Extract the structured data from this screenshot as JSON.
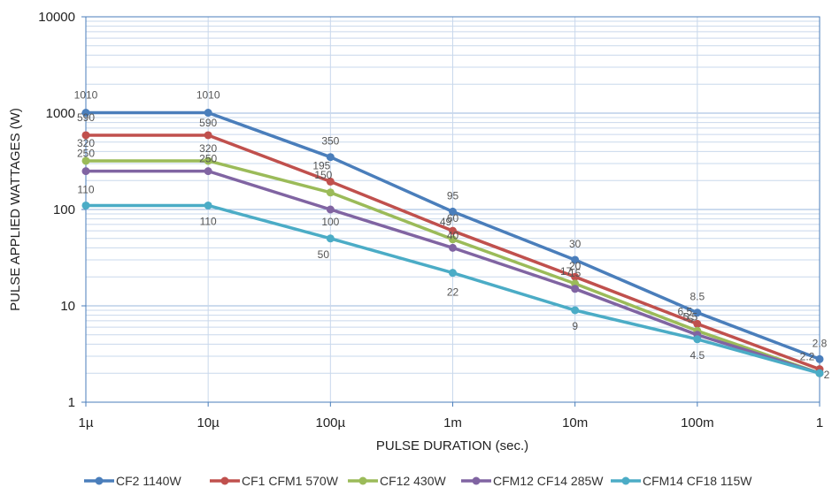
{
  "chart_data": {
    "type": "line",
    "xlabel": "PULSE DURATION (sec.)",
    "ylabel": "PULSE APPLIED WATTAGES (W)",
    "x_scale": "log",
    "y_scale": "log",
    "x_ticks": [
      "1µ",
      "10µ",
      "100µ",
      "1m",
      "10m",
      "100m",
      "1"
    ],
    "x_tick_values": [
      1e-06,
      1e-05,
      0.0001,
      0.001,
      0.01,
      0.1,
      1
    ],
    "y_ticks": [
      "1",
      "10",
      "100",
      "1000",
      "10000"
    ],
    "y_tick_values": [
      1,
      10,
      100,
      1000,
      10000
    ],
    "xlim": [
      1e-06,
      1
    ],
    "ylim": [
      1,
      10000
    ],
    "grid": "on",
    "legend_position": "bottom",
    "series": [
      {
        "name": "CF2 1140W",
        "color": "#4a7ebb",
        "x": [
          1e-06,
          1e-05,
          0.0001,
          0.001,
          0.01,
          0.1,
          1
        ],
        "values": [
          1010,
          1010,
          350,
          95,
          30,
          8.5,
          2.8
        ],
        "labels": [
          "1010",
          "1010",
          "350",
          "95",
          "30",
          "8.5",
          "2.8"
        ]
      },
      {
        "name": "CF1 CFM1 570W",
        "color": "#c0504d",
        "x": [
          1e-06,
          1e-05,
          0.0001,
          0.001,
          0.01,
          0.1,
          1
        ],
        "values": [
          590,
          590,
          195,
          60,
          20,
          6.5,
          2.2
        ],
        "labels": [
          "590",
          "590",
          "195",
          "60",
          "20",
          "6.5",
          "2.2"
        ]
      },
      {
        "name": "CF12 430W",
        "color": "#9bbb59",
        "x": [
          1e-06,
          1e-05,
          0.0001,
          0.001,
          0.01,
          0.1,
          1
        ],
        "values": [
          320,
          320,
          150,
          49,
          17,
          5.5,
          2
        ],
        "labels": [
          "320",
          "320",
          "150",
          "49",
          "17",
          "5.5",
          ""
        ]
      },
      {
        "name": "CFM12 CF14 285W",
        "color": "#8064a2",
        "x": [
          1e-06,
          1e-05,
          0.0001,
          0.001,
          0.01,
          0.1,
          1
        ],
        "values": [
          250,
          250,
          100,
          40,
          15,
          5,
          2
        ],
        "labels": [
          "250",
          "250",
          "100",
          "40",
          "15",
          "5",
          ""
        ]
      },
      {
        "name": "CFM14 CF18 115W",
        "color": "#4bacc6",
        "x": [
          1e-06,
          1e-05,
          0.0001,
          0.001,
          0.01,
          0.1,
          1
        ],
        "values": [
          110,
          110,
          50,
          22,
          9,
          4.5,
          2
        ],
        "labels": [
          "110",
          "110",
          "50",
          "22",
          "9",
          "4.5",
          "2"
        ]
      }
    ]
  }
}
